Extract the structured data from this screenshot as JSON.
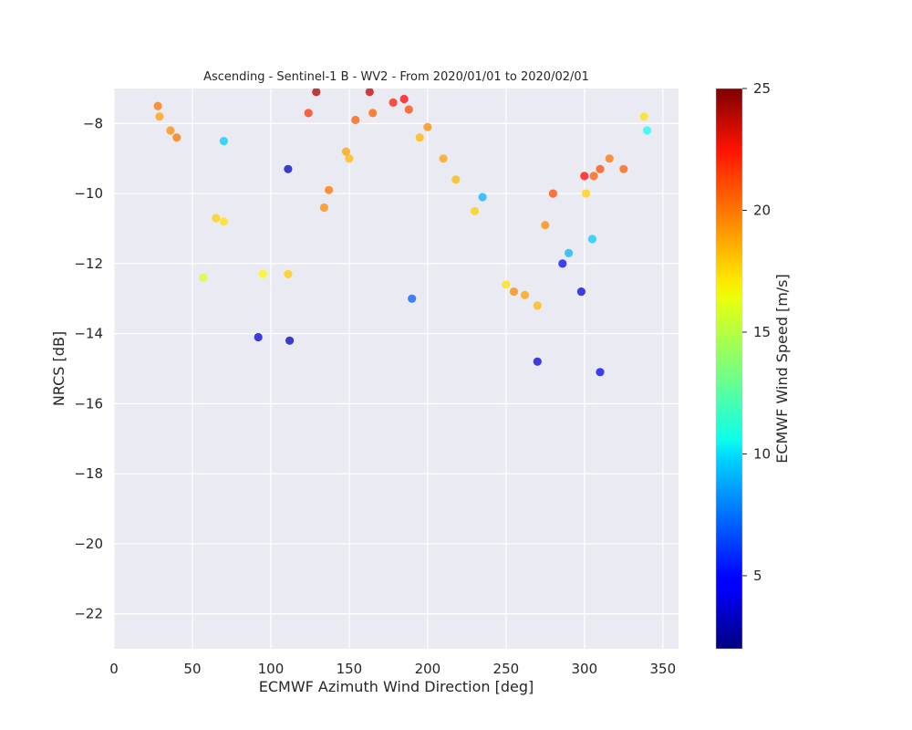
{
  "chart_data": {
    "type": "scatter",
    "title": "Ascending - Sentinel-1 B - WV2 - From 2020/01/01 to 2020/02/01",
    "xlabel": "ECMWF Azimuth Wind Direction [deg]",
    "ylabel": "NRCS [dB]",
    "xlim": [
      0,
      360
    ],
    "ylim": [
      -23,
      -7
    ],
    "xticks": [
      0,
      50,
      100,
      150,
      200,
      250,
      300,
      350
    ],
    "yticks": [
      -22,
      -20,
      -18,
      -16,
      -14,
      -12,
      -10,
      -8
    ],
    "grid": true,
    "colormap": "jet",
    "colorbar": {
      "label": "ECMWF Wind Speed [m/s]",
      "range": [
        2,
        25
      ],
      "ticks": [
        5,
        10,
        15,
        20,
        25
      ]
    },
    "point_alpha": 0.75,
    "series": [
      {
        "points": [
          [
            129,
            -7.1,
            24.0
          ],
          [
            163,
            -7.1,
            23.5
          ],
          [
            124,
            -7.7,
            21.0
          ],
          [
            178,
            -7.4,
            21.5
          ],
          [
            185,
            -7.3,
            22.0
          ],
          [
            188,
            -7.6,
            20.5
          ],
          [
            165,
            -7.7,
            20.0
          ],
          [
            154,
            -7.9,
            20.0
          ],
          [
            28,
            -7.5,
            19.5
          ],
          [
            29,
            -7.8,
            18.5
          ],
          [
            36,
            -8.2,
            19.0
          ],
          [
            40,
            -8.4,
            19.5
          ],
          [
            70,
            -8.5,
            9.5
          ],
          [
            111,
            -9.3,
            3.5
          ],
          [
            300,
            -9.5,
            22.0
          ],
          [
            306,
            -9.5,
            20.0
          ],
          [
            310,
            -9.3,
            20.5
          ],
          [
            316,
            -9.0,
            19.5
          ],
          [
            325,
            -9.3,
            20.0
          ],
          [
            280,
            -10.0,
            20.5
          ],
          [
            301,
            -10.0,
            17.5
          ],
          [
            338,
            -7.8,
            17.0
          ],
          [
            340,
            -8.2,
            11.0
          ],
          [
            275,
            -10.9,
            19.0
          ],
          [
            65,
            -10.7,
            17.5
          ],
          [
            70,
            -10.8,
            17.0
          ],
          [
            134,
            -10.4,
            19.0
          ],
          [
            137,
            -9.9,
            19.5
          ],
          [
            148,
            -8.8,
            18.5
          ],
          [
            150,
            -9.0,
            18.0
          ],
          [
            200,
            -8.1,
            19.0
          ],
          [
            195,
            -8.4,
            18.0
          ],
          [
            210,
            -9.0,
            18.5
          ],
          [
            218,
            -9.6,
            18.0
          ],
          [
            230,
            -10.5,
            17.5
          ],
          [
            255,
            -12.8,
            19.0
          ],
          [
            262,
            -12.9,
            18.5
          ],
          [
            270,
            -13.2,
            18.0
          ],
          [
            250,
            -12.6,
            17.0
          ],
          [
            286,
            -12.0,
            5.0
          ],
          [
            298,
            -12.8,
            4.5
          ],
          [
            111,
            -12.3,
            17.5
          ],
          [
            95,
            -12.3,
            16.5
          ],
          [
            57,
            -12.4,
            15.5
          ],
          [
            290,
            -11.7,
            9.0
          ],
          [
            305,
            -11.3,
            9.5
          ],
          [
            112,
            -14.2,
            3.5
          ],
          [
            92,
            -14.1,
            4.0
          ],
          [
            310,
            -15.1,
            4.5
          ],
          [
            270,
            -14.8,
            4.0
          ],
          [
            235,
            -10.1,
            9.0
          ],
          [
            190,
            -13.0,
            7.0
          ]
        ]
      }
    ]
  }
}
